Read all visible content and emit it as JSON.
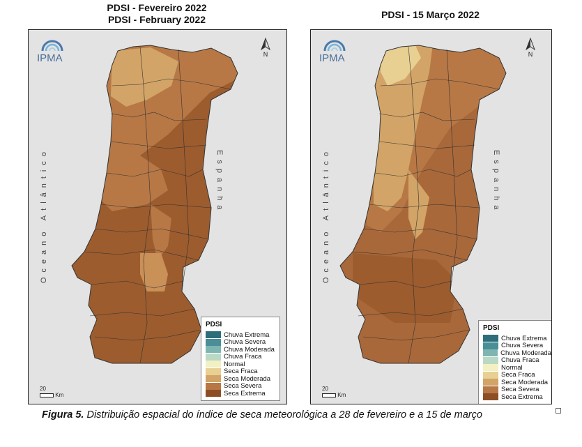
{
  "maps": [
    {
      "title_line1": "PDSI - Fevereiro 2022",
      "title_line2": "PDSI - February 2022",
      "legend_title": "PDSI",
      "scale_label": "20",
      "scale_unit": "Km"
    },
    {
      "title_line1": "PDSI - 15 Março 2022",
      "legend_title": "PDSI",
      "scale_label": "20",
      "scale_unit": "Km"
    }
  ],
  "logo_text": "IPMA",
  "north_label": "N",
  "ocean_label": "Oceano Atlântico",
  "spain_label": "Espanha",
  "legend_items": [
    {
      "label": "Chuva Extrema",
      "color": "#2e6e7a"
    },
    {
      "label": "Chuva Severa",
      "color": "#4a8e97"
    },
    {
      "label": "Chuva Moderada",
      "color": "#7fb5b0"
    },
    {
      "label": "Chuva Fraca",
      "color": "#b9d9c6"
    },
    {
      "label": "Normal",
      "color": "#f3f0c2"
    },
    {
      "label": "Seca Fraca",
      "color": "#e8cf92"
    },
    {
      "label": "Seca Moderada",
      "color": "#d2a467"
    },
    {
      "label": "Seca Severa",
      "color": "#b77845"
    },
    {
      "label": "Seca Extrema",
      "color": "#8e4e25"
    }
  ],
  "caption": {
    "label": "Figura 5.",
    "text": " Distribuição espacial do índice de seca meteorológica a 28 de fevereiro e a 15 de março"
  }
}
